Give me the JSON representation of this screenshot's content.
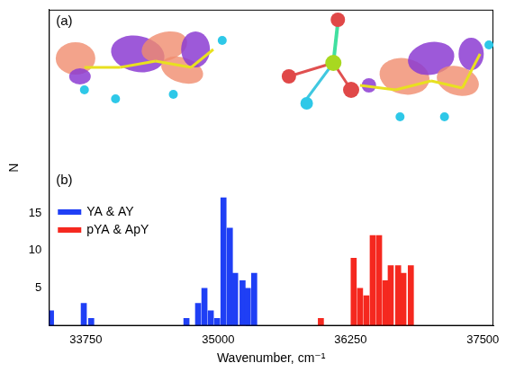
{
  "chart_data": {
    "type": "bar",
    "annotations": [
      "(a)",
      "(b)"
    ],
    "x_label": "Wavenumber, cm⁻¹",
    "y_label": "N",
    "xlim": [
      33400,
      37600
    ],
    "xticks": [
      33750,
      35000,
      36250,
      37500
    ],
    "ylim": [
      0,
      42
    ],
    "yticks": [
      5,
      10,
      15
    ],
    "grid": false,
    "legend": "left",
    "series": [
      {
        "name": "YA & AY",
        "color": "#1f3ff5",
        "x": [
          33420,
          33730,
          33800,
          34700,
          34810,
          34870,
          34930,
          34990,
          35050,
          35110,
          35160,
          35230,
          35280,
          35340
        ],
        "values": [
          2,
          3,
          1,
          1,
          3,
          5,
          2,
          1,
          17,
          13,
          7,
          6,
          5,
          7
        ]
      },
      {
        "name": "pYA & ApY",
        "color": "#f5281f",
        "x": [
          35230,
          35970,
          36280,
          36340,
          36400,
          36460,
          36520,
          36580,
          36630,
          36700,
          36750,
          36820
        ],
        "values": [
          1,
          1,
          9,
          5,
          4,
          12,
          12,
          6,
          8,
          8,
          7,
          8
        ]
      }
    ]
  }
}
